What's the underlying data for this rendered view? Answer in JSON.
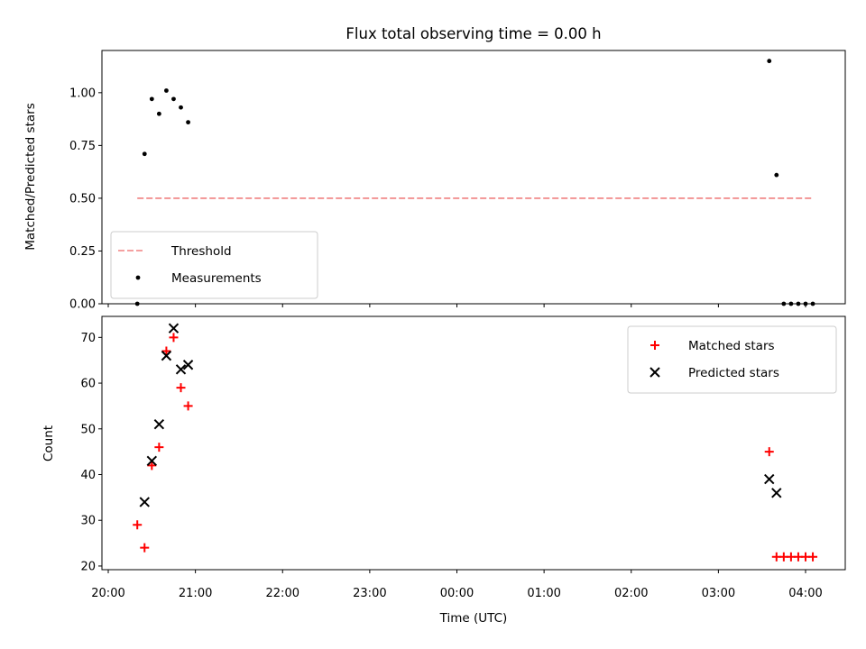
{
  "title": "Flux total observing time = 0.00 h",
  "x_tick_labels": [
    "20:00",
    "21:00",
    "22:00",
    "23:00",
    "00:00",
    "01:00",
    "02:00",
    "03:00",
    "04:00"
  ],
  "chart_data": [
    {
      "type": "scatter",
      "panel": "top",
      "ylabel": "Matched/Predicted stars",
      "xlabel": "",
      "ylim": [
        0,
        1.2
      ],
      "y_ticks": [
        0.0,
        0.25,
        0.5,
        0.75,
        1.0
      ],
      "y_tick_labels": [
        "0.00",
        "0.25",
        "0.50",
        "0.75",
        "1.00"
      ],
      "x_tick_labels": [
        "20:00",
        "21:00",
        "22:00",
        "23:00",
        "00:00",
        "01:00",
        "02:00",
        "03:00",
        "04:00"
      ],
      "legend": {
        "position": "lower-left",
        "entries": [
          "Threshold",
          "Measurements"
        ]
      },
      "threshold": {
        "name": "Threshold",
        "value": 0.5,
        "x_start": "20:20",
        "x_end": "04:05",
        "color": "#f08080",
        "style": "dashed"
      },
      "series": [
        {
          "name": "Measurements",
          "color": "#000000",
          "marker": "dot",
          "points": [
            [
              "20:20",
              0.0
            ],
            [
              "20:25",
              0.71
            ],
            [
              "20:30",
              0.97
            ],
            [
              "20:35",
              0.9
            ],
            [
              "20:40",
              1.01
            ],
            [
              "20:45",
              0.97
            ],
            [
              "20:50",
              0.93
            ],
            [
              "20:55",
              0.86
            ],
            [
              "03:35",
              1.15
            ],
            [
              "03:40",
              0.61
            ],
            [
              "03:45",
              0.0
            ],
            [
              "03:50",
              0.0
            ],
            [
              "03:55",
              0.0
            ],
            [
              "04:00",
              0.0
            ],
            [
              "04:05",
              0.0
            ]
          ]
        }
      ]
    },
    {
      "type": "scatter",
      "panel": "bottom",
      "ylabel": "Count",
      "xlabel": "Time (UTC)",
      "ylim": [
        19.2,
        74.6
      ],
      "y_ticks": [
        20,
        30,
        40,
        50,
        60,
        70
      ],
      "y_tick_labels": [
        "20",
        "30",
        "40",
        "50",
        "60",
        "70"
      ],
      "x_tick_labels": [
        "20:00",
        "21:00",
        "22:00",
        "23:00",
        "00:00",
        "01:00",
        "02:00",
        "03:00",
        "04:00"
      ],
      "legend": {
        "position": "top-right",
        "entries": [
          "Matched stars",
          "Predicted stars"
        ]
      },
      "series": [
        {
          "name": "Matched stars",
          "color": "#ff0000",
          "marker": "plus",
          "points": [
            [
              "20:20",
              29
            ],
            [
              "20:25",
              24
            ],
            [
              "20:30",
              42
            ],
            [
              "20:35",
              46
            ],
            [
              "20:40",
              67
            ],
            [
              "20:45",
              70
            ],
            [
              "20:50",
              59
            ],
            [
              "20:55",
              55
            ],
            [
              "03:35",
              45
            ],
            [
              "03:40",
              22
            ],
            [
              "03:45",
              22
            ],
            [
              "03:50",
              22
            ],
            [
              "03:55",
              22
            ],
            [
              "04:00",
              22
            ],
            [
              "04:05",
              22
            ]
          ]
        },
        {
          "name": "Predicted stars",
          "color": "#000000",
          "marker": "x",
          "points": [
            [
              "20:25",
              34
            ],
            [
              "20:30",
              43
            ],
            [
              "20:35",
              51
            ],
            [
              "20:40",
              66
            ],
            [
              "20:45",
              72
            ],
            [
              "20:50",
              63
            ],
            [
              "20:55",
              64
            ],
            [
              "03:35",
              39
            ],
            [
              "03:40",
              36
            ]
          ]
        }
      ]
    }
  ]
}
